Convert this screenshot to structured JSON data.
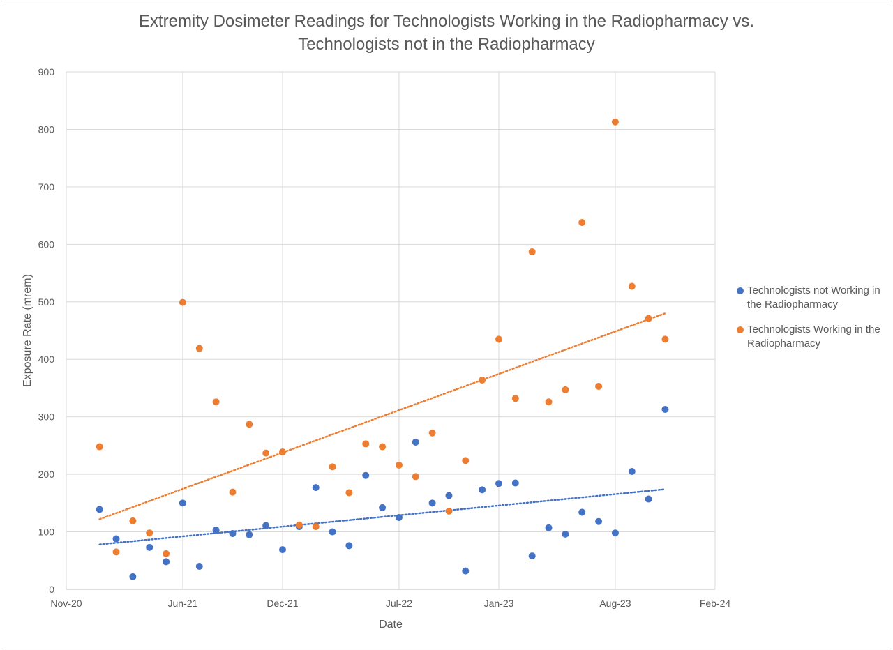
{
  "chart_data": {
    "type": "scatter",
    "title_lines": [
      "Extremity Dosimeter Readings for Technologists Working in the Radiopharmacy vs.",
      "Technologists not in the Radiopharmacy"
    ],
    "xlabel": "Date",
    "ylabel": "Exposure Rate (mrem)",
    "x_ticks": [
      "Nov-20",
      "Jun-21",
      "Dec-21",
      "Jul-22",
      "Jan-23",
      "Aug-23",
      "Feb-24"
    ],
    "y_ticks": [
      0,
      100,
      200,
      300,
      400,
      500,
      600,
      700,
      800,
      900
    ],
    "xlim": [
      "Nov-20",
      "Feb-24"
    ],
    "ylim": [
      0,
      900
    ],
    "grid": true,
    "legend_position": "right",
    "x": [
      "Jan-21",
      "Feb-21",
      "Mar-21",
      "Apr-21",
      "May-21",
      "Jun-21",
      "Jul-21",
      "Aug-21",
      "Sep-21",
      "Oct-21",
      "Nov-21",
      "Dec-21",
      "Jan-22",
      "Feb-22",
      "Mar-22",
      "Apr-22",
      "May-22",
      "Jun-22",
      "Jul-22",
      "Aug-22",
      "Sep-22",
      "Oct-22",
      "Nov-22",
      "Dec-22",
      "Jan-23",
      "Feb-23",
      "Mar-23",
      "Apr-23",
      "May-23",
      "Jun-23",
      "Jul-23",
      "Aug-23",
      "Sep-23",
      "Oct-23",
      "Nov-23"
    ],
    "series": [
      {
        "name": "Technologists not Working in the Radiopharmacy",
        "color": "#4472C4",
        "values": [
          139,
          88,
          22,
          73,
          48,
          150,
          40,
          103,
          97,
          95,
          111,
          69,
          109,
          177,
          100,
          76,
          198,
          142,
          125,
          256,
          150,
          163,
          32,
          173,
          184,
          185,
          58,
          107,
          96,
          134,
          118,
          98,
          205,
          157,
          313
        ],
        "trendline": {
          "start": [
            "Jan-21",
            78
          ],
          "end": [
            "Nov-23",
            174
          ]
        }
      },
      {
        "name": "Technologists Working in the Radiopharmacy",
        "color": "#ED7D31",
        "values": [
          248,
          65,
          119,
          98,
          62,
          499,
          419,
          326,
          169,
          287,
          237,
          239,
          112,
          109,
          213,
          168,
          253,
          248,
          216,
          196,
          272,
          136,
          224,
          364,
          435,
          332,
          587,
          326,
          347,
          638,
          353,
          813,
          527,
          471,
          435
        ],
        "trendline": {
          "start": [
            "Jan-21",
            122
          ],
          "end": [
            "Nov-23",
            480
          ]
        }
      }
    ]
  }
}
